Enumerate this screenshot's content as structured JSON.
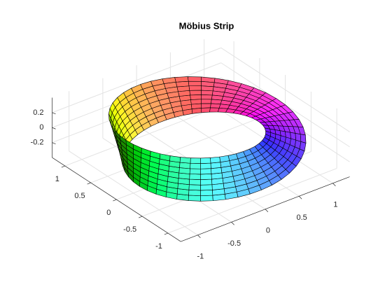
{
  "chart_data": {
    "type": "surface",
    "title": "Möbius Strip",
    "xlim": [
      -1.25,
      1.25
    ],
    "xticks": [
      -1,
      -0.5,
      0,
      0.5,
      1
    ],
    "ylim": [
      -1.25,
      1.25
    ],
    "yticks": [
      -1,
      -0.5,
      0,
      0.5,
      1
    ],
    "zlim": [
      -0.4,
      0.4
    ],
    "zticks": [
      -0.2,
      0,
      0.2
    ],
    "grid": true,
    "colormap": "hsv"
  }
}
